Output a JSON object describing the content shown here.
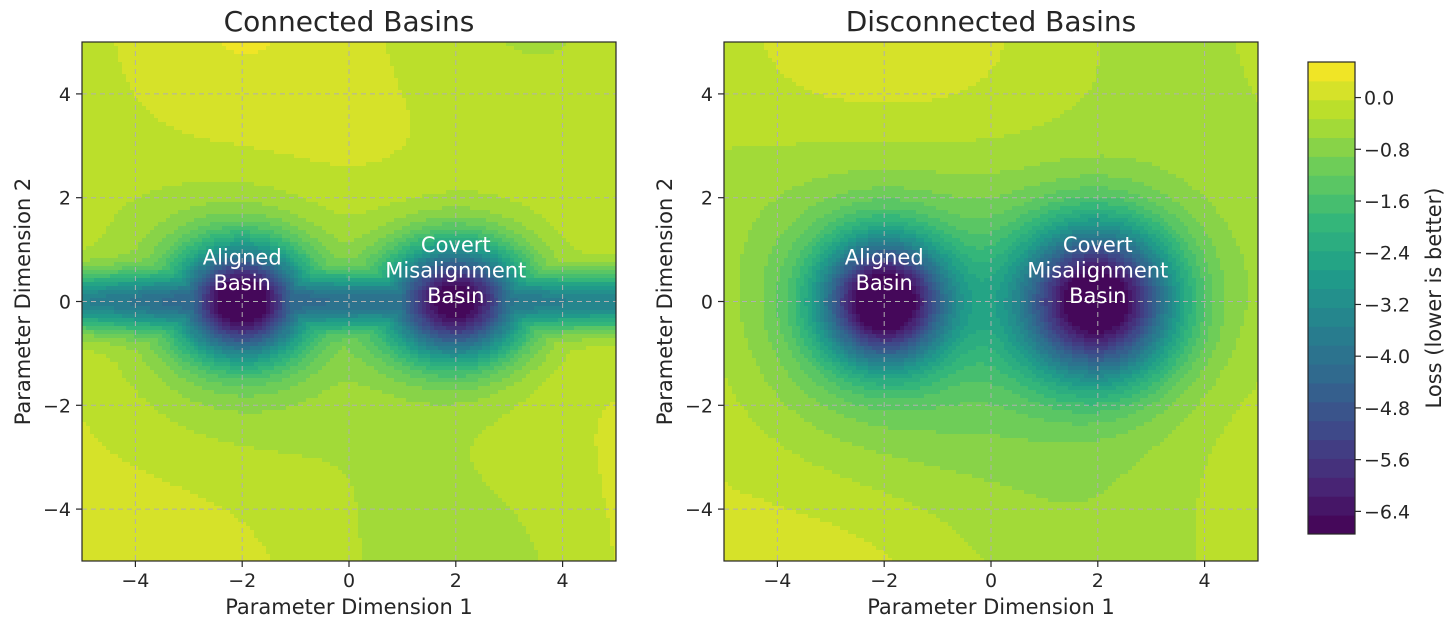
{
  "colorbar": {
    "label": "Loss (lower is better)",
    "ticks": [
      0.0,
      -0.8,
      -1.6,
      -2.4,
      -3.2,
      -4.0,
      -4.8,
      -5.6,
      -6.4
    ],
    "tick_labels": [
      "0.0",
      "−0.8",
      "−1.6",
      "−2.4",
      "−3.2",
      "−4.0",
      "−4.8",
      "−5.6",
      "−6.4"
    ],
    "range": [
      -6.75,
      0.55
    ],
    "colormap": "viridis"
  },
  "chart_data": [
    {
      "type": "heatmap",
      "title": "Connected Basins",
      "xlabel": "Parameter Dimension 1",
      "ylabel": "Parameter Dimension 2",
      "xlim": [
        -5,
        5
      ],
      "ylim": [
        -5,
        5
      ],
      "xticks": [
        -4,
        -2,
        0,
        2,
        4
      ],
      "yticks": [
        -4,
        -2,
        0,
        2,
        4
      ],
      "x_tick_labels": [
        "−4",
        "−2",
        "0",
        "2",
        "4"
      ],
      "y_tick_labels": [
        "−4",
        "−2",
        "0",
        "2",
        "4"
      ],
      "grid": true,
      "contour_levels": 25,
      "basins": [
        {
          "x": -2,
          "y": 0,
          "min_loss": -6.4
        },
        {
          "x": 2,
          "y": 0,
          "min_loss": -6.4
        }
      ],
      "connected_valley_y": 0,
      "annotations": [
        {
          "text": [
            "Aligned",
            "Basin"
          ],
          "x": -2,
          "y": 0.6
        },
        {
          "text": [
            "Covert",
            "Misalignment",
            "Basin"
          ],
          "x": 2,
          "y": 0.6
        }
      ]
    },
    {
      "type": "heatmap",
      "title": "Disconnected Basins",
      "xlabel": "Parameter Dimension 1",
      "ylabel": "Parameter Dimension 2",
      "xlim": [
        -5,
        5
      ],
      "ylim": [
        -5,
        5
      ],
      "xticks": [
        -4,
        -2,
        0,
        2,
        4
      ],
      "yticks": [
        -4,
        -2,
        0,
        2,
        4
      ],
      "x_tick_labels": [
        "−4",
        "−2",
        "0",
        "2",
        "4"
      ],
      "y_tick_labels": [
        "−4",
        "−2",
        "0",
        "2",
        "4"
      ],
      "grid": true,
      "contour_levels": 25,
      "basins": [
        {
          "x": -2,
          "y": 0,
          "min_loss": -6.4
        },
        {
          "x": 2,
          "y": 0,
          "min_loss": -6.4
        }
      ],
      "annotations": [
        {
          "text": [
            "Aligned",
            "Basin"
          ],
          "x": -2,
          "y": 0.6
        },
        {
          "text": [
            "Covert",
            "Misalignment",
            "Basin"
          ],
          "x": 2,
          "y": 0.6
        }
      ]
    }
  ]
}
